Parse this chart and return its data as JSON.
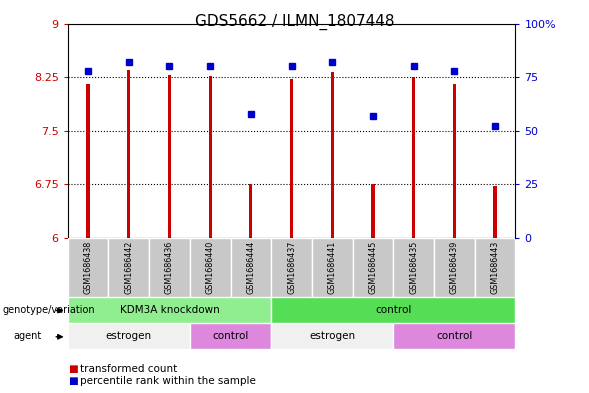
{
  "title": "GDS5662 / ILMN_1807448",
  "samples": [
    "GSM1686438",
    "GSM1686442",
    "GSM1686436",
    "GSM1686440",
    "GSM1686444",
    "GSM1686437",
    "GSM1686441",
    "GSM1686445",
    "GSM1686435",
    "GSM1686439",
    "GSM1686443"
  ],
  "red_values": [
    8.15,
    8.35,
    8.28,
    8.26,
    6.75,
    8.22,
    8.32,
    6.75,
    8.25,
    8.15,
    6.73
  ],
  "blue_values": [
    78,
    82,
    80,
    80,
    58,
    80,
    82,
    57,
    80,
    78,
    52
  ],
  "ylim_left": [
    6,
    9
  ],
  "ylim_right": [
    0,
    100
  ],
  "yticks_left": [
    6,
    6.75,
    7.5,
    8.25,
    9
  ],
  "yticks_right": [
    0,
    25,
    50,
    75,
    100
  ],
  "ytick_labels_right": [
    "0",
    "25",
    "50",
    "75",
    "100%"
  ],
  "bar_color": "#cc0000",
  "dot_color": "#0000cc",
  "bar_bottom": 6,
  "bar_width": 0.08,
  "genotype_groups": [
    {
      "label": "KDM3A knockdown",
      "start": 0,
      "end": 5,
      "color": "#90ee90"
    },
    {
      "label": "control",
      "start": 5,
      "end": 11,
      "color": "#55dd55"
    }
  ],
  "agent_groups": [
    {
      "label": "estrogen",
      "start": 0,
      "end": 3,
      "color": "#f0f0f0"
    },
    {
      "label": "control",
      "start": 3,
      "end": 5,
      "color": "#dd88dd"
    },
    {
      "label": "estrogen",
      "start": 5,
      "end": 8,
      "color": "#f0f0f0"
    },
    {
      "label": "control",
      "start": 8,
      "end": 11,
      "color": "#dd88dd"
    }
  ],
  "legend_items": [
    {
      "label": "transformed count",
      "color": "#cc0000"
    },
    {
      "label": "percentile rank within the sample",
      "color": "#0000cc"
    }
  ],
  "tick_fontsize": 8,
  "title_fontsize": 11,
  "background_color": "#ffffff",
  "sample_bg_color": "#c8c8c8"
}
